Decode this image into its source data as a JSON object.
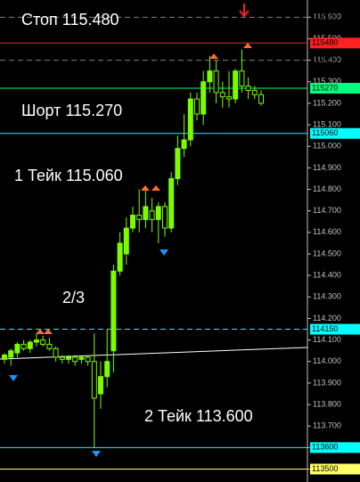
{
  "chart_data": {
    "type": "candlestick",
    "open": [
      114.01,
      114.02,
      114.04,
      114.08,
      114.06,
      114.09,
      114.1,
      114.08,
      114.06,
      114.02,
      114.01,
      114.02,
      114.01,
      114.02,
      114.0,
      113.85,
      113.93,
      114.05,
      114.42,
      114.5,
      114.62,
      114.68,
      114.66,
      114.7,
      114.66,
      114.72,
      114.62,
      114.85,
      114.99,
      115.03,
      115.22,
      115.15,
      115.3,
      115.35,
      115.25,
      115.23,
      115.22,
      115.35,
      115.28,
      115.26,
      115.24
    ],
    "high": [
      114.04,
      114.06,
      114.09,
      114.1,
      114.1,
      114.13,
      114.12,
      114.11,
      114.07,
      114.03,
      114.03,
      114.03,
      114.03,
      114.03,
      114.13,
      114.0,
      114.15,
      114.45,
      114.6,
      114.67,
      114.72,
      114.8,
      114.8,
      114.76,
      114.74,
      114.74,
      114.88,
      115.05,
      115.15,
      115.25,
      115.25,
      115.35,
      115.42,
      115.4,
      115.3,
      115.35,
      115.36,
      115.45,
      115.32,
      115.28,
      115.26
    ],
    "low": [
      113.99,
      113.98,
      114.02,
      114.05,
      114.04,
      114.07,
      114.07,
      114.05,
      114.0,
      113.99,
      113.99,
      113.98,
      113.99,
      113.98,
      113.6,
      113.78,
      113.88,
      113.95,
      114.4,
      114.45,
      114.6,
      114.6,
      114.62,
      114.6,
      114.55,
      114.58,
      114.6,
      114.82,
      114.95,
      115.0,
      115.12,
      115.1,
      115.25,
      115.2,
      115.18,
      115.18,
      115.2,
      115.25,
      115.22,
      115.22,
      115.19
    ],
    "close": [
      114.03,
      114.05,
      114.08,
      114.06,
      114.09,
      114.1,
      114.08,
      114.06,
      114.02,
      114.01,
      114.02,
      114.0,
      114.02,
      114.0,
      113.83,
      113.93,
      114.0,
      114.42,
      114.55,
      114.62,
      114.68,
      114.66,
      114.72,
      114.66,
      114.72,
      114.62,
      114.85,
      114.99,
      115.03,
      115.22,
      115.15,
      115.3,
      115.35,
      115.25,
      115.23,
      115.22,
      115.35,
      115.28,
      115.26,
      115.24,
      115.2
    ],
    "color": "#7cfc00",
    "ylim": [
      113.44,
      115.68
    ],
    "yticks": [
      {
        "value": 113.5,
        "label": "113.500"
      },
      {
        "value": 113.6,
        "label": "113.600"
      },
      {
        "value": 113.7,
        "label": "113.700"
      },
      {
        "value": 113.8,
        "label": "113.800"
      },
      {
        "value": 113.9,
        "label": "113.900"
      },
      {
        "value": 114.0,
        "label": "114.000"
      },
      {
        "value": 114.1,
        "label": "114.100"
      },
      {
        "value": 114.2,
        "label": "114.200"
      },
      {
        "value": 114.3,
        "label": "114.300"
      },
      {
        "value": 114.4,
        "label": "114.400"
      },
      {
        "value": 114.5,
        "label": "114.500"
      },
      {
        "value": 114.6,
        "label": "114.600"
      },
      {
        "value": 114.7,
        "label": "114.700"
      },
      {
        "value": 114.8,
        "label": "114.800"
      },
      {
        "value": 114.9,
        "label": "114.900"
      },
      {
        "value": 115.0,
        "label": "115.000"
      },
      {
        "value": 115.1,
        "label": "115.100"
      },
      {
        "value": 115.2,
        "label": "115.200"
      },
      {
        "value": 115.3,
        "label": "115.300"
      },
      {
        "value": 115.4,
        "label": "115.400"
      },
      {
        "value": 115.5,
        "label": "115.500"
      },
      {
        "value": 115.6,
        "label": "115.600"
      }
    ],
    "levels": [
      {
        "value": 115.6,
        "label": "115600",
        "color": "#808080",
        "dashed": true
      },
      {
        "value": 115.4,
        "label": "115400",
        "color": "#808080",
        "dashed": true
      },
      {
        "value": 115.48,
        "label": "115480",
        "color": "#ff2020",
        "dashed": false
      },
      {
        "value": 115.27,
        "label": "115270",
        "color": "#00ff7f",
        "dashed": false
      },
      {
        "value": 115.06,
        "label": "115060",
        "color": "#00ffff",
        "dashed": false
      },
      {
        "value": 114.15,
        "label": "114150",
        "color": "#00ffff",
        "dashed": true
      },
      {
        "value": 113.6,
        "label": "113600",
        "color": "#00ffff",
        "dashed": false
      },
      {
        "value": 113.5,
        "label": "113500",
        "color": "#ffff66",
        "dashed": false
      }
    ],
    "annotations": [
      "Стоп 115.480",
      "Шорт 115.270",
      "1 Тейк 115.060",
      "2/3",
      "2 Тейк 113.600"
    ]
  }
}
